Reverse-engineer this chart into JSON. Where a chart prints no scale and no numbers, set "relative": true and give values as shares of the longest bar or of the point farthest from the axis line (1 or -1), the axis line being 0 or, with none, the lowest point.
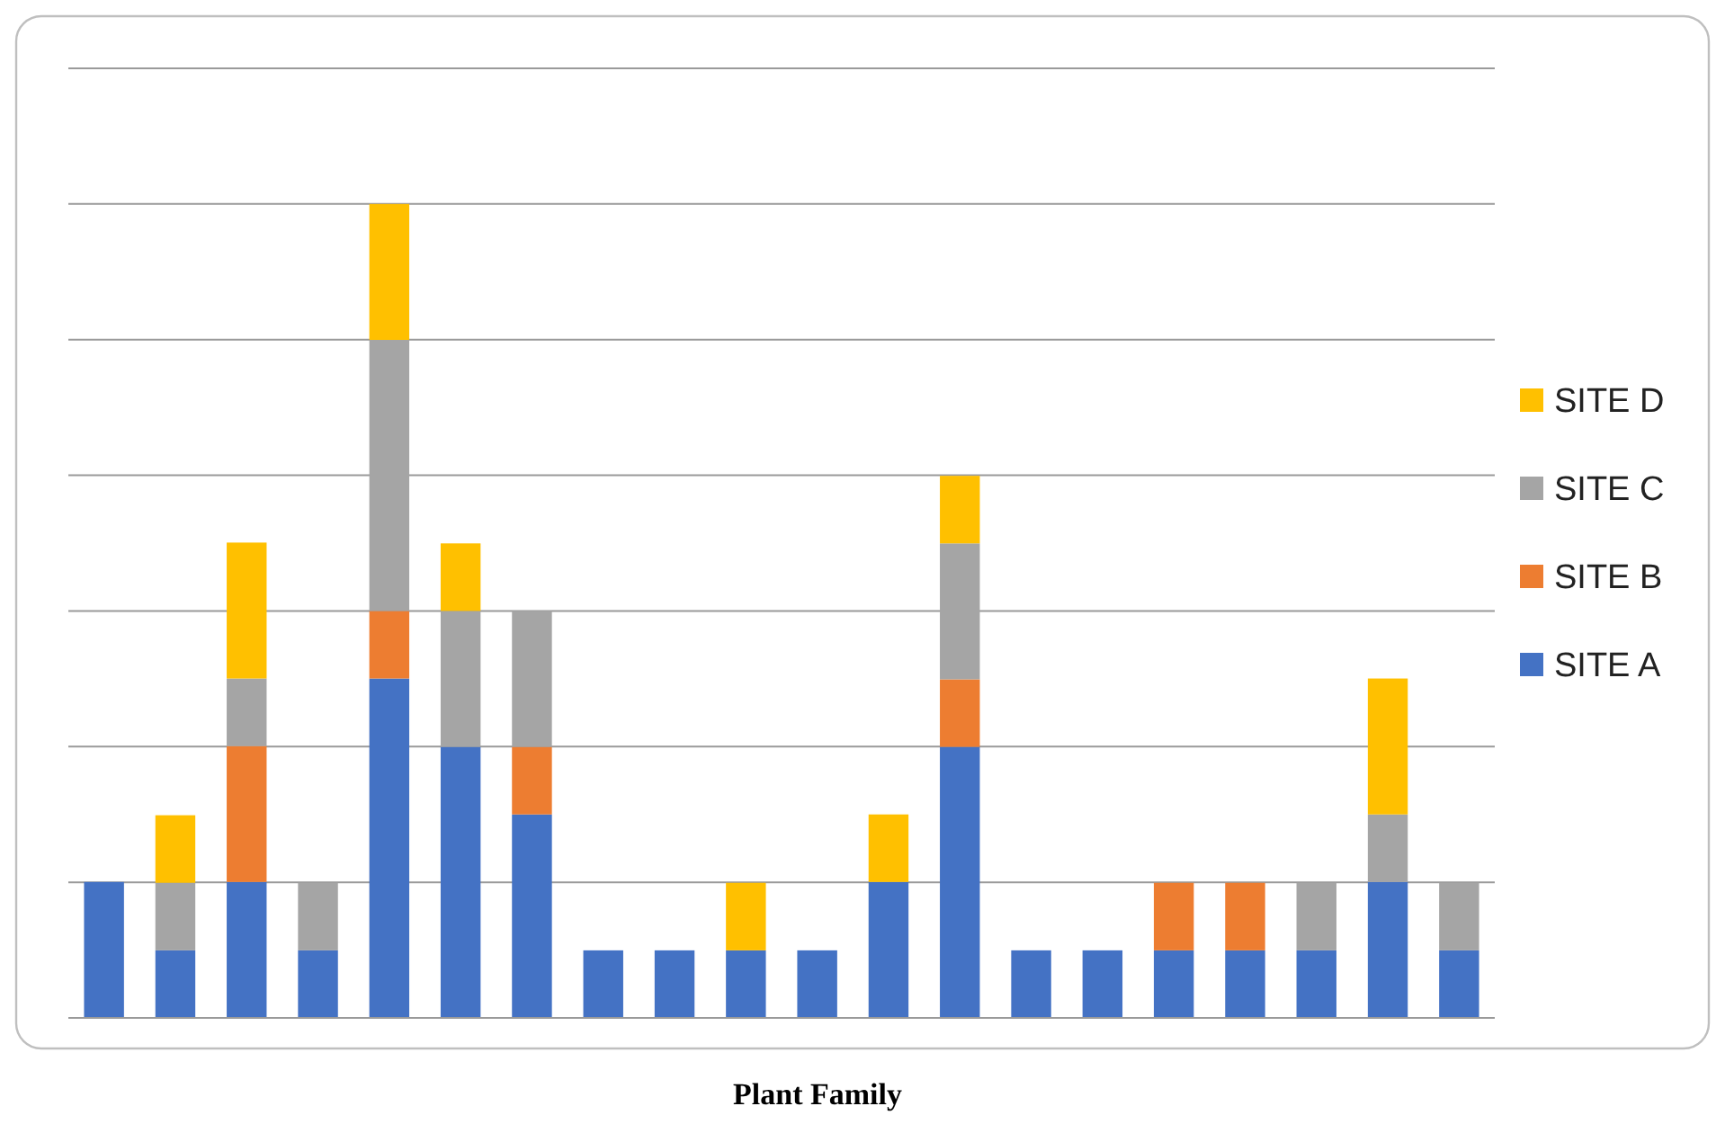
{
  "chart_data": {
    "type": "bar",
    "xlabel": "Plant Family",
    "relative": true,
    "stacked": true,
    "grid": true,
    "legend": "right",
    "categories": [
      null,
      null,
      null,
      null,
      null,
      null,
      null,
      null,
      null,
      null,
      null,
      null,
      null,
      null,
      null,
      null,
      null,
      null,
      null,
      null
    ],
    "series": [
      {
        "name": "SITE A",
        "color": "#4472c4",
        "values": [
          0.167,
          0.083,
          0.167,
          0.083,
          0.417,
          0.333,
          0.25,
          0.083,
          0.083,
          0.083,
          0.083,
          0.167,
          0.333,
          0.083,
          0.083,
          0.083,
          0.083,
          0.083,
          0.167,
          0.083
        ]
      },
      {
        "name": "SITE B",
        "color": "#ed7d31",
        "values": [
          0,
          0,
          0.167,
          0,
          0.083,
          0,
          0.083,
          0,
          0,
          0,
          0,
          0,
          0.083,
          0,
          0,
          0.083,
          0.083,
          0,
          0,
          0
        ]
      },
      {
        "name": "SITE C",
        "color": "#a5a5a5",
        "values": [
          0,
          0.083,
          0.083,
          0.083,
          0.333,
          0.167,
          0.167,
          0,
          0,
          0,
          0,
          0,
          0.167,
          0,
          0,
          0,
          0,
          0.083,
          0.083,
          0.083
        ]
      },
      {
        "name": "SITE D",
        "color": "#ffc000",
        "values": [
          0,
          0.083,
          0.167,
          0,
          0.167,
          0.083,
          0,
          0,
          0,
          0.083,
          0,
          0.083,
          0.083,
          0,
          0,
          0,
          0,
          0,
          0.167,
          0
        ]
      }
    ]
  }
}
